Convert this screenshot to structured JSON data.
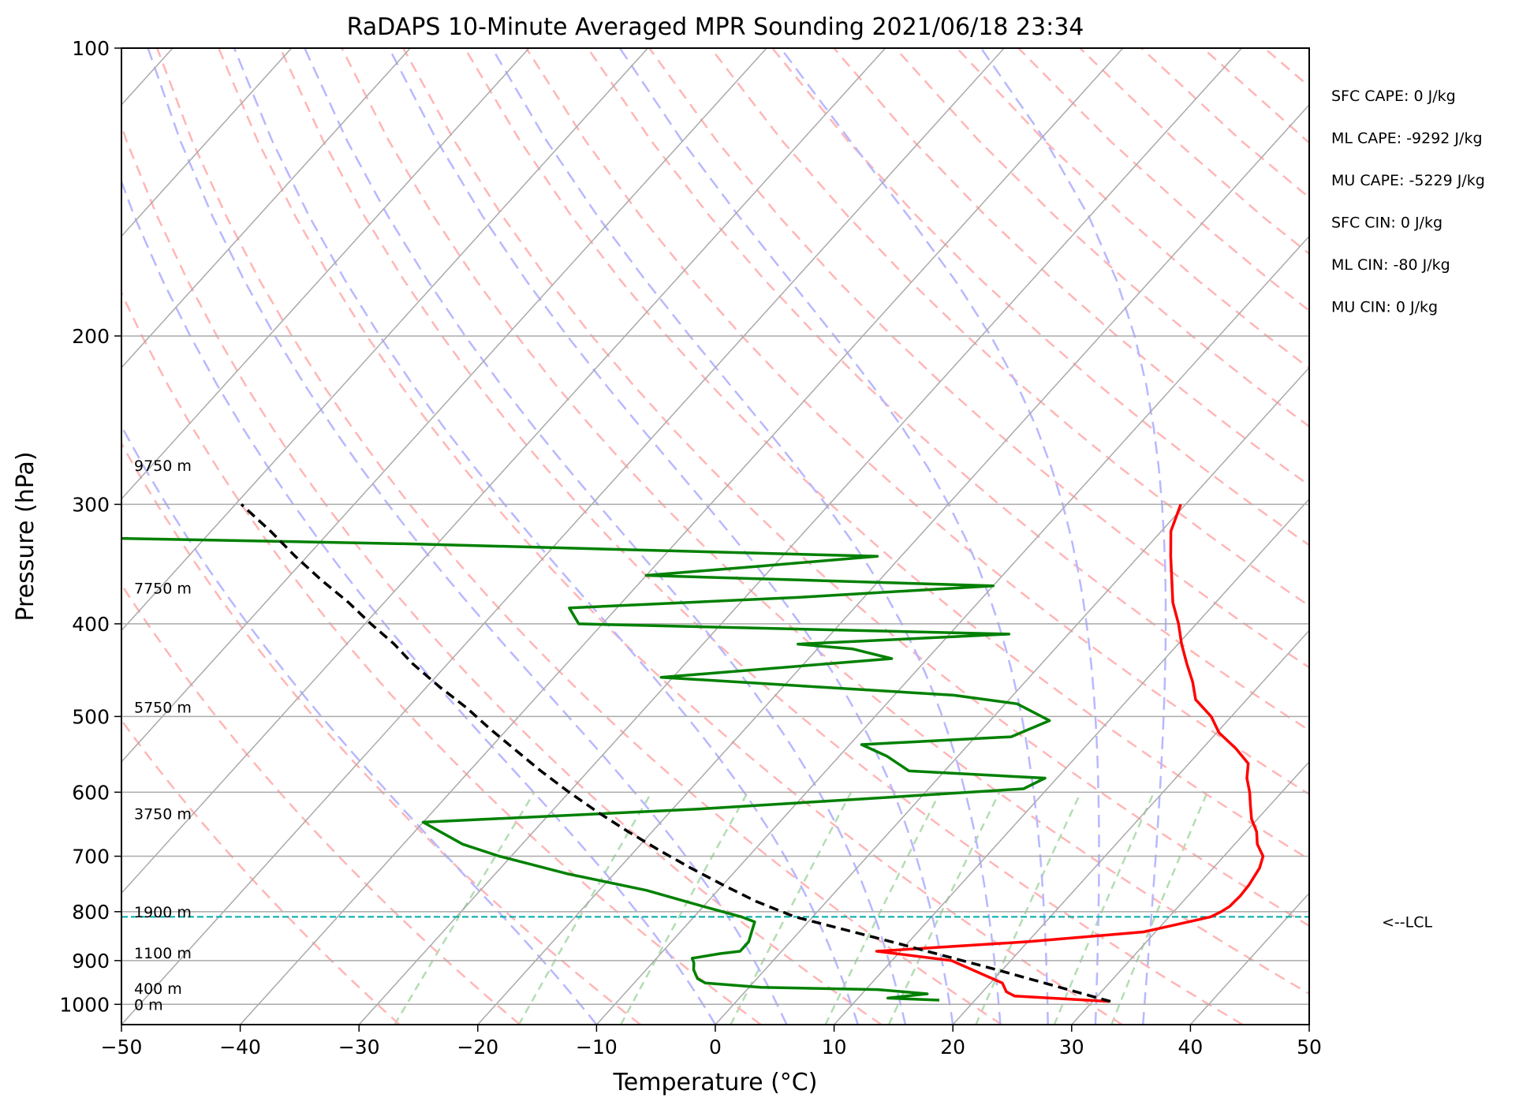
{
  "chart_data": {
    "type": "line",
    "subtype": "skew-t log-p sounding",
    "title": "RaDAPS 10-Minute Averaged MPR Sounding 2021/06/18 23:34",
    "xlabel": "Temperature (°C)",
    "ylabel": "Pressure (hPa)",
    "xlim": [
      -50,
      50
    ],
    "ylim": [
      1050,
      100
    ],
    "y_scale": "log",
    "x_ticks": [
      "−50",
      "−40",
      "−30",
      "−20",
      "−10",
      "0",
      "10",
      "20",
      "30",
      "40",
      "50"
    ],
    "y_ticks": [
      "100",
      "200",
      "300",
      "400",
      "500",
      "600",
      "700",
      "800",
      "900",
      "1000"
    ],
    "grid": true,
    "series": [
      {
        "color": "#ff0000",
        "points": [
          [
            31.4,
            993
          ],
          [
            23.0,
            980
          ],
          [
            22.0,
            970
          ],
          [
            21.0,
            950
          ],
          [
            15.0,
            900
          ],
          [
            8.0,
            880
          ],
          [
            20.0,
            860
          ],
          [
            29.0,
            840
          ],
          [
            30.5,
            830
          ],
          [
            32.0,
            820
          ],
          [
            33.5,
            810
          ],
          [
            34.0,
            800
          ],
          [
            34.3,
            790
          ],
          [
            34.4,
            770
          ],
          [
            34.3,
            750
          ],
          [
            33.9,
            720
          ],
          [
            33.3,
            700
          ],
          [
            31.9,
            680
          ],
          [
            30.9,
            660
          ],
          [
            29.5,
            640
          ],
          [
            28.4,
            620
          ],
          [
            27.3,
            600
          ],
          [
            26.0,
            580
          ],
          [
            25.0,
            560
          ],
          [
            22.8,
            540
          ],
          [
            20.2,
            520
          ],
          [
            18.3,
            500
          ],
          [
            15.7,
            480
          ],
          [
            14.1,
            460
          ],
          [
            12.2,
            440
          ],
          [
            10.3,
            420
          ],
          [
            8.5,
            400
          ],
          [
            6.4,
            380
          ],
          [
            4.6,
            360
          ],
          [
            2.7,
            340
          ],
          [
            0.8,
            320
          ],
          [
            -0.4,
            300
          ]
        ]
      },
      {
        "color": "#008000",
        "points": [
          [
            17.0,
            990
          ],
          [
            12.5,
            985
          ],
          [
            15.5,
            975
          ],
          [
            11.0,
            965
          ],
          [
            1.0,
            960
          ],
          [
            -4.0,
            950
          ],
          [
            -5.0,
            940
          ],
          [
            -6.0,
            920
          ],
          [
            -6.5,
            905
          ],
          [
            -7.0,
            895
          ],
          [
            -5.0,
            885
          ],
          [
            -3.5,
            880
          ],
          [
            -3.5,
            860
          ],
          [
            -4.0,
            840
          ],
          [
            -4.5,
            820
          ],
          [
            -6.0,
            810
          ],
          [
            -10.0,
            790
          ],
          [
            -16.0,
            760
          ],
          [
            -24.0,
            730
          ],
          [
            -31.0,
            700
          ],
          [
            -35.0,
            680
          ],
          [
            -40.0,
            645
          ],
          [
            -18.0,
            625
          ],
          [
            -5.0,
            610
          ],
          [
            8.0,
            595
          ],
          [
            9.0,
            580
          ],
          [
            -3.0,
            570
          ],
          [
            -6.0,
            550
          ],
          [
            -9.0,
            535
          ],
          [
            3.0,
            525
          ],
          [
            5.0,
            505
          ],
          [
            1.0,
            485
          ],
          [
            -5.0,
            475
          ],
          [
            -31.0,
            455
          ],
          [
            -13.0,
            435
          ],
          [
            -17.0,
            425
          ],
          [
            -22.0,
            420
          ],
          [
            -5.0,
            410
          ],
          [
            -42.0,
            400
          ],
          [
            -44.0,
            385
          ],
          [
            -25.0,
            375
          ],
          [
            -10.0,
            365
          ],
          [
            -40.0,
            356
          ],
          [
            -31.0,
            348
          ],
          [
            -22.0,
            340
          ],
          [
            -62.0,
            330
          ],
          [
            -120.0,
            320
          ]
        ]
      },
      {
        "color": "#000000",
        "dashed": true,
        "points": [
          [
            31.5,
            993
          ],
          [
            19.5,
            920
          ],
          [
            8.5,
            860
          ],
          [
            -1.5,
            810
          ],
          [
            -6.0,
            780
          ],
          [
            -10.0,
            750
          ],
          [
            -14.0,
            720
          ],
          [
            -18.0,
            690
          ],
          [
            -22.0,
            660
          ],
          [
            -26.0,
            630
          ],
          [
            -30.0,
            600
          ],
          [
            -34.0,
            570
          ],
          [
            -38.0,
            540
          ],
          [
            -41.5,
            515
          ],
          [
            -45.0,
            490
          ],
          [
            -49.0,
            465
          ],
          [
            -53.0,
            440
          ],
          [
            -56.0,
            420
          ],
          [
            -59.5,
            400
          ],
          [
            -63.0,
            380
          ],
          [
            -67.0,
            360
          ],
          [
            -71.0,
            340
          ],
          [
            -75.0,
            320
          ],
          [
            -79.5,
            300
          ]
        ]
      }
    ],
    "lcl": {
      "pressure": 810,
      "label": "<--LCL",
      "color": "#00aaaa"
    },
    "height_labels": [
      {
        "label": "9750 m",
        "pressure": 273
      },
      {
        "label": "7750 m",
        "pressure": 367
      },
      {
        "label": "5750 m",
        "pressure": 489
      },
      {
        "label": "3750 m",
        "pressure": 632
      },
      {
        "label": "1900 m",
        "pressure": 800
      },
      {
        "label": "1100 m",
        "pressure": 883
      },
      {
        "label": "400 m",
        "pressure": 962
      },
      {
        "label": "0 m",
        "pressure": 1000
      }
    ],
    "stats": [
      "SFC CAPE: 0 J/kg",
      "ML CAPE: -9292 J/kg",
      "MU CAPE: -5229 J/kg",
      "SFC CIN: 0 J/kg",
      "ML CIN: -80 J/kg",
      "MU CIN: 0 J/kg"
    ],
    "background_lines": {
      "skewed_isotherms_color": "#aaaaaa",
      "dry_adiabats_color": "#ffb6b6",
      "moist_adiabats_color": "#b8b8ff",
      "mixing_ratio_color": "#b3ddb3"
    }
  }
}
